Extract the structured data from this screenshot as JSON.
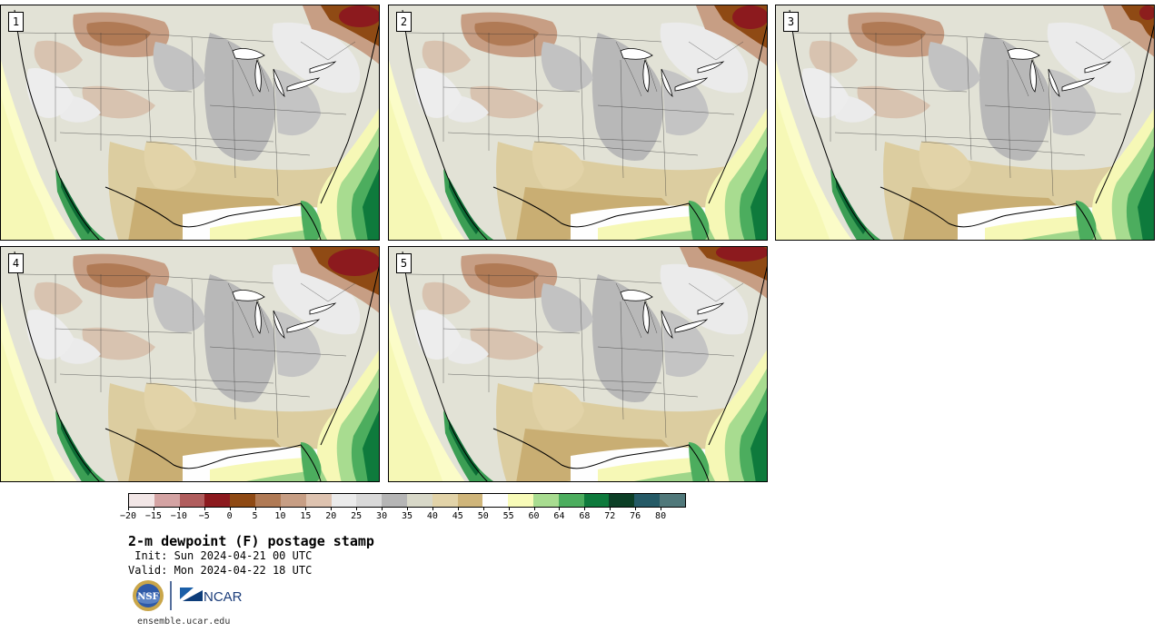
{
  "panels": [
    {
      "label": "1"
    },
    {
      "label": "2"
    },
    {
      "label": "3"
    },
    {
      "label": "4"
    },
    {
      "label": "5"
    }
  ],
  "colorbar": {
    "colors": [
      "#f2e6e6",
      "#d4a3a3",
      "#b05d5d",
      "#8c1a1e",
      "#8f4a14",
      "#b07a55",
      "#c79e84",
      "#deC3b0",
      "#ebebeb",
      "#d9d9d9",
      "#b5b5b5",
      "#d8d8c8",
      "#e2d3a8",
      "#cfb57a",
      "#fefefe",
      "#f8fbb8",
      "#a8dc90",
      "#4cad5e",
      "#0e7a3c",
      "#0c3f26",
      "#255a66",
      "#50787a"
    ],
    "tick_labels": [
      "−20",
      "−15",
      "−10",
      "−5",
      "0",
      "5",
      "10",
      "15",
      "20",
      "25",
      "30",
      "35",
      "40",
      "45",
      "50",
      "55",
      "60",
      "64",
      "68",
      "72",
      "76",
      "80"
    ]
  },
  "title": "2-m dewpoint (F) postage stamp",
  "init": " Init: Sun 2024-04-21 00 UTC",
  "valid": "Valid: Mon 2024-04-22 18 UTC",
  "logos": {
    "nsf": "NSF",
    "ncar": "NCAR"
  },
  "site": "ensemble.ucar.edu"
}
